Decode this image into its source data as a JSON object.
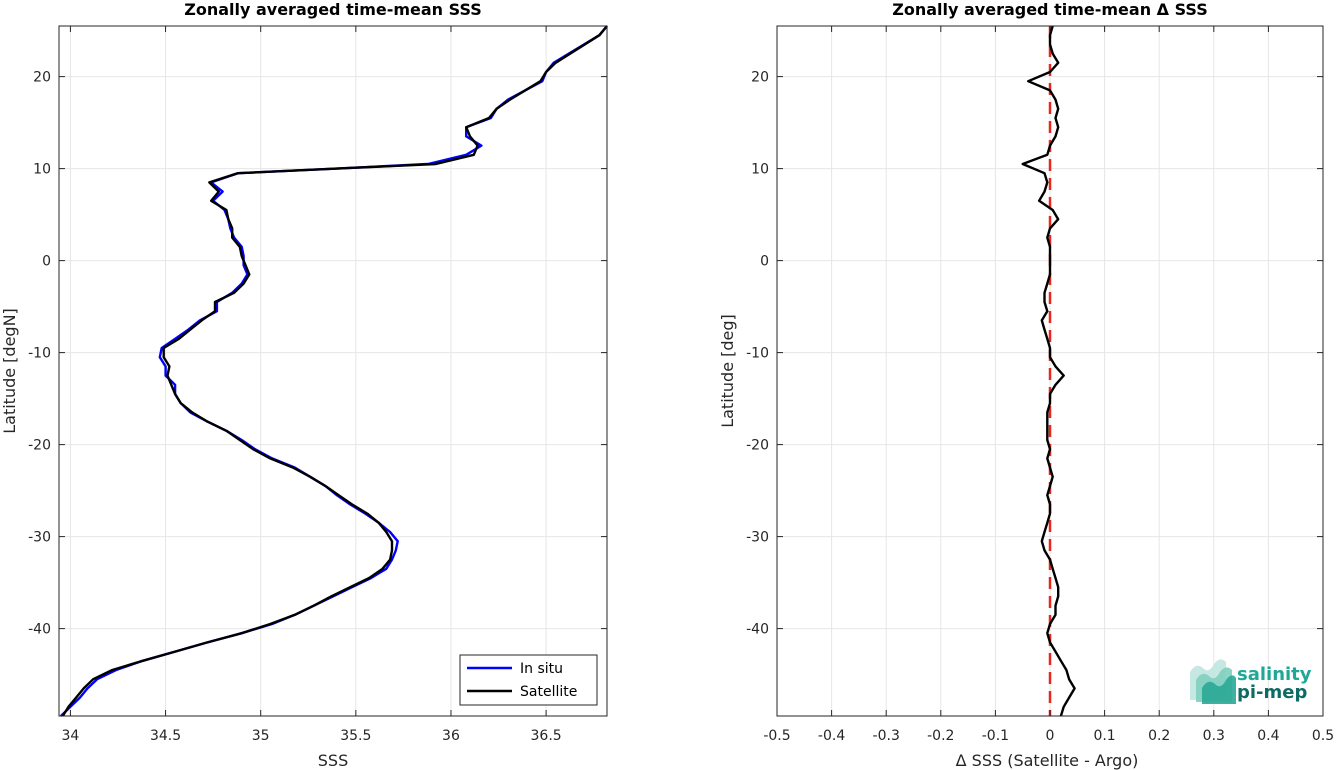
{
  "chart_data": [
    {
      "type": "line",
      "title": "Zonally averaged time-mean SSS",
      "xlabel": "SSS",
      "ylabel": "Latitude [degN]",
      "xlim": [
        33.94,
        36.82
      ],
      "ylim": [
        -49.5,
        25.5
      ],
      "xticks": [
        "34",
        "34.5",
        "35",
        "35.5",
        "36",
        "36.5"
      ],
      "xtick_values": [
        34,
        34.5,
        35,
        35.5,
        36,
        36.5
      ],
      "yticks": [
        "-40",
        "-30",
        "-20",
        "-10",
        "0",
        "10",
        "20"
      ],
      "ytick_values": [
        -40,
        -30,
        -20,
        -10,
        0,
        10,
        20
      ],
      "grid": true,
      "legend_position": "bottom-right",
      "series": [
        {
          "name": "In situ",
          "color": "#0000ff",
          "lat": [
            25.5,
            24.5,
            21.5,
            20.5,
            19.5,
            17.5,
            16.5,
            15.5,
            14.5,
            13.5,
            12.5,
            11.5,
            10.5,
            10,
            9.5,
            8.5,
            7.5,
            6.5,
            5.5,
            4.5,
            3.5,
            2.5,
            1.5,
            0.5,
            -0.5,
            -1.5,
            -2.5,
            -3.5,
            -4.5,
            -5.5,
            -6.5,
            -7.5,
            -8.5,
            -9.5,
            -10.5,
            -11.5,
            -12.5,
            -13.5,
            -14.5,
            -15.5,
            -16.5,
            -17.5,
            -18.5,
            -19.5,
            -20.5,
            -21.5,
            -22.5,
            -23.5,
            -24.5,
            -25.5,
            -26.5,
            -27.5,
            -28.5,
            -29.5,
            -30.5,
            -31.5,
            -32.5,
            -33.5,
            -34.5,
            -35.5,
            -36.5,
            -37.5,
            -38.5,
            -39.5,
            -40.5,
            -41.5,
            -42.5,
            -43.5,
            -44.5,
            -45.5,
            -46.5,
            -47.5,
            -48.5,
            -49.5
          ],
          "sss": [
            36.82,
            36.78,
            36.54,
            36.5,
            36.48,
            36.3,
            36.24,
            36.21,
            36.08,
            36.08,
            36.16,
            36.08,
            35.88,
            35.4,
            34.88,
            34.74,
            34.8,
            34.75,
            34.81,
            34.83,
            34.84,
            34.86,
            34.9,
            34.91,
            34.91,
            34.93,
            34.9,
            34.85,
            34.77,
            34.77,
            34.68,
            34.62,
            34.55,
            34.48,
            34.47,
            34.5,
            34.5,
            34.55,
            34.55,
            34.58,
            34.63,
            34.72,
            34.82,
            34.9,
            34.97,
            35.06,
            35.18,
            35.26,
            35.34,
            35.4,
            35.47,
            35.55,
            35.62,
            35.68,
            35.72,
            35.71,
            35.69,
            35.66,
            35.58,
            35.48,
            35.38,
            35.28,
            35.18,
            35.06,
            34.9,
            34.72,
            34.55,
            34.38,
            34.24,
            34.14,
            34.09,
            34.05,
            34.0,
            33.95
          ]
        },
        {
          "name": "Satellite",
          "color": "#000000",
          "lat": [
            25.5,
            24.5,
            21.5,
            20.5,
            19.5,
            17.5,
            16.5,
            15.5,
            14.5,
            13.5,
            12.5,
            11.5,
            10.5,
            10,
            9.5,
            8.5,
            7.5,
            6.5,
            5.5,
            4.5,
            3.5,
            2.5,
            1.5,
            0.5,
            -0.5,
            -1.5,
            -2.5,
            -3.5,
            -4.5,
            -5.5,
            -6.5,
            -7.5,
            -8.5,
            -9.5,
            -10.5,
            -11.5,
            -12.5,
            -13.5,
            -14.5,
            -15.5,
            -16.5,
            -17.5,
            -18.5,
            -19.5,
            -20.5,
            -21.5,
            -22.5,
            -23.5,
            -24.5,
            -25.5,
            -26.5,
            -27.5,
            -28.5,
            -29.5,
            -30.5,
            -31.5,
            -32.5,
            -33.5,
            -34.5,
            -35.5,
            -36.5,
            -37.5,
            -38.5,
            -39.5,
            -40.5,
            -41.5,
            -42.5,
            -43.5,
            -44.5,
            -45.5,
            -46.5,
            -47.5,
            -48.5,
            -49.5
          ],
          "sss": [
            36.82,
            36.78,
            36.55,
            36.5,
            36.47,
            36.31,
            36.24,
            36.2,
            36.08,
            36.1,
            36.14,
            36.12,
            35.92,
            35.4,
            34.88,
            34.73,
            34.78,
            34.74,
            34.82,
            34.83,
            34.85,
            34.85,
            34.89,
            34.9,
            34.92,
            34.94,
            34.91,
            34.86,
            34.76,
            34.76,
            34.69,
            34.63,
            34.57,
            34.49,
            34.49,
            34.52,
            34.51,
            34.53,
            34.55,
            34.58,
            34.64,
            34.72,
            34.82,
            34.89,
            34.96,
            35.05,
            35.17,
            35.26,
            35.34,
            35.41,
            35.48,
            35.56,
            35.62,
            35.66,
            35.69,
            35.69,
            35.68,
            35.64,
            35.57,
            35.47,
            35.37,
            35.28,
            35.18,
            35.05,
            34.9,
            34.72,
            34.55,
            34.38,
            34.22,
            34.12,
            34.07,
            34.03,
            33.99,
            33.96
          ]
        }
      ]
    },
    {
      "type": "line",
      "title": "Zonally averaged time-mean Δ SSS",
      "xlabel": "Δ SSS (Satellite - Argo)",
      "ylabel": "Latitude [deg]",
      "xlim": [
        -0.5,
        0.5
      ],
      "ylim": [
        -49.5,
        25.5
      ],
      "xticks": [
        "-0.5",
        "-0.4",
        "-0.3",
        "-0.2",
        "-0.1",
        "0",
        "0.1",
        "0.2",
        "0.3",
        "0.4",
        "0.5"
      ],
      "xtick_values": [
        -0.5,
        -0.4,
        -0.3,
        -0.2,
        -0.1,
        0,
        0.1,
        0.2,
        0.3,
        0.4,
        0.5
      ],
      "yticks": [
        "-40",
        "-30",
        "-20",
        "-10",
        "0",
        "10",
        "20"
      ],
      "ytick_values": [
        -40,
        -30,
        -20,
        -10,
        0,
        10,
        20
      ],
      "grid": true,
      "reference_line": {
        "x": 0,
        "color": "#e8281e",
        "style": "dashed"
      },
      "series": [
        {
          "color": "#000000",
          "lat": [
            25.5,
            24.5,
            23.5,
            22.5,
            21.5,
            20.5,
            19.5,
            18.5,
            17.5,
            16.5,
            15.5,
            14.5,
            13.5,
            12.5,
            11.5,
            10.5,
            9.5,
            8.5,
            7.5,
            6.5,
            5.5,
            4.5,
            3.5,
            2.5,
            1.5,
            0.5,
            -0.5,
            -1.5,
            -2.5,
            -3.5,
            -4.5,
            -5.5,
            -6.5,
            -7.5,
            -8.5,
            -9.5,
            -10.5,
            -11.5,
            -12.5,
            -13.5,
            -14.5,
            -15.5,
            -16.5,
            -17.5,
            -18.5,
            -19.5,
            -20.5,
            -21.5,
            -22.5,
            -23.5,
            -24.5,
            -25.5,
            -26.5,
            -27.5,
            -28.5,
            -29.5,
            -30.5,
            -31.5,
            -32.5,
            -33.5,
            -34.5,
            -35.5,
            -36.5,
            -37.5,
            -38.5,
            -39.5,
            -40.5,
            -41.5,
            -42.5,
            -43.5,
            -44.5,
            -45.5,
            -46.5,
            -47.5,
            -48.5,
            -49.5
          ],
          "dsss": [
            0.005,
            0.0,
            0.0,
            0.005,
            0.015,
            0.0,
            -0.04,
            0.0,
            0.01,
            0.015,
            0.01,
            0.015,
            0.01,
            0.0,
            -0.005,
            -0.05,
            -0.01,
            -0.005,
            -0.01,
            -0.02,
            0.005,
            0.015,
            0.0,
            -0.005,
            0.0,
            0.0,
            0.0,
            0.0,
            -0.005,
            -0.01,
            -0.01,
            -0.005,
            -0.015,
            -0.01,
            -0.005,
            0.0,
            0.0,
            0.01,
            0.025,
            0.01,
            0.0,
            0.0,
            -0.005,
            -0.005,
            -0.005,
            -0.005,
            0.0,
            -0.005,
            0.0,
            0.005,
            0.0,
            -0.005,
            0.0,
            0.0,
            -0.005,
            -0.01,
            -0.015,
            -0.01,
            0.0,
            0.005,
            0.01,
            0.015,
            0.015,
            0.01,
            0.01,
            0.0,
            -0.005,
            0.0,
            0.01,
            0.02,
            0.03,
            0.035,
            0.045,
            0.035,
            0.025,
            0.02
          ]
        }
      ]
    }
  ],
  "legend": {
    "in_situ": "In situ",
    "satellite": "Satellite"
  },
  "logo": {
    "line1": "salinity",
    "line2": "pi-mep",
    "color1": "#1fa898",
    "color2": "#0e6b63"
  }
}
